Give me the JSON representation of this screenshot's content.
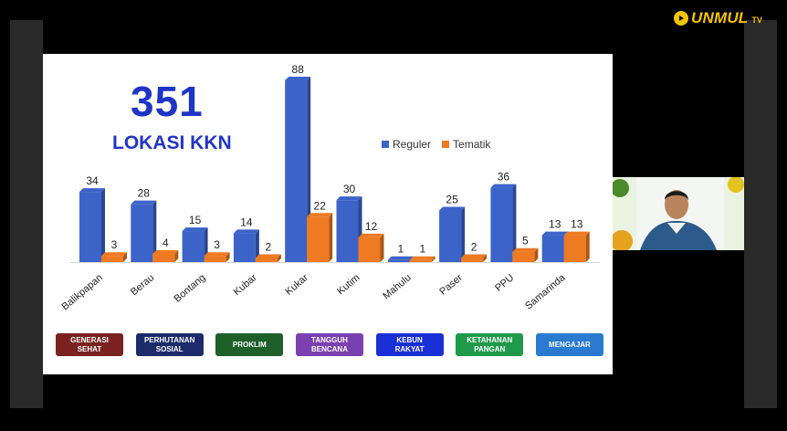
{
  "logo": {
    "text": "UNMUL",
    "suffix": "TV"
  },
  "slide": {
    "big_number": "351",
    "subtitle": "LOKASI KKN",
    "programs": [
      {
        "label": "GENERASI\nSEHAT",
        "color": "#7a2222"
      },
      {
        "label": "PERHUTANAN\nSOSIAL",
        "color": "#1d2b6b"
      },
      {
        "label": "PROKLIM",
        "color": "#1f5f2a"
      },
      {
        "label": "TANGGUH\nBENCANA",
        "color": "#7a3fb0"
      },
      {
        "label": "KEBUN\nRAKYAT",
        "color": "#1a30d6"
      },
      {
        "label": "KETAHANAN\nPANGAN",
        "color": "#1f9a4a"
      },
      {
        "label": "MENGAJAR",
        "color": "#2a7ad0"
      }
    ]
  },
  "chart_data": {
    "type": "bar",
    "categories": [
      "Balikpapan",
      "Berau",
      "Bontang",
      "Kubar",
      "Kukar",
      "Kutim",
      "Mahulu",
      "Paser",
      "PPU",
      "Samarinda"
    ],
    "series": [
      {
        "name": "Reguler",
        "color": "#3c63c8",
        "values": [
          34,
          28,
          15,
          14,
          88,
          30,
          1,
          25,
          36,
          13
        ]
      },
      {
        "name": "Tematik",
        "color": "#ee7a22",
        "values": [
          3,
          4,
          3,
          2,
          22,
          12,
          1,
          2,
          5,
          13
        ]
      }
    ],
    "ylim": [
      0,
      88
    ],
    "legend": "top-right",
    "grid": false
  }
}
